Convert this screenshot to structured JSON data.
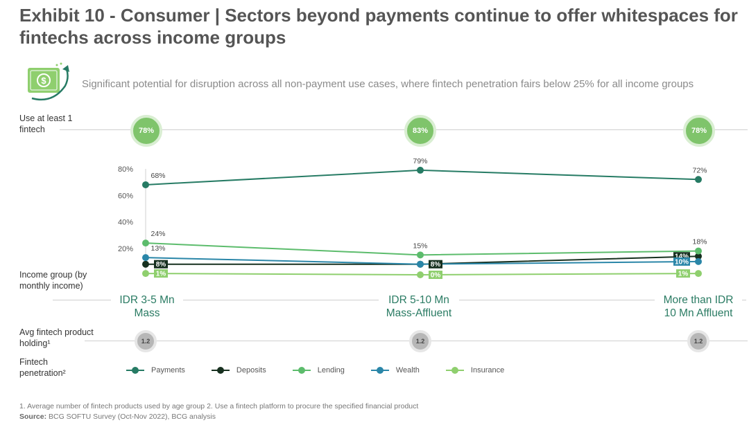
{
  "title": "Exhibit 10 - Consumer | Sectors beyond payments continue to offer whitespaces for fintechs across income groups",
  "subtitle": "Significant potential for disruption across all non-payment use cases, where fintech penetration fairs below 25% for all income groups",
  "icon": "money-cycle-icon",
  "rows": {
    "use_fintech": "Use at least 1 fintech",
    "income_group": "Income group (by monthly income)",
    "avg_holding": "Avg fintech product holding¹",
    "penetration": "Fintech penetration²"
  },
  "use_fintech_values": [
    "78%",
    "83%",
    "78%"
  ],
  "income_groups": [
    {
      "line1": "IDR 3-5 Mn",
      "line2": "Mass"
    },
    {
      "line1": "IDR 5-10 Mn",
      "line2": "Mass-Affluent"
    },
    {
      "line1": "More than IDR",
      "line2": "10 Mn Affluent"
    }
  ],
  "avg_holding_values": [
    "1.2",
    "1.2",
    "1.2"
  ],
  "colors": {
    "payments": "#267b64",
    "deposits": "#17301f",
    "lending": "#5cbc6c",
    "wealth": "#2a86a8",
    "insurance": "#8fcf6e"
  },
  "chart_data": {
    "type": "line",
    "categories": [
      "IDR 3-5 Mn Mass",
      "IDR 5-10 Mn Mass-Affluent",
      "More than IDR 10 Mn Affluent"
    ],
    "ylim": [
      0,
      80
    ],
    "yticks": [
      20,
      40,
      60,
      80
    ],
    "ytick_labels": [
      "20%",
      "40%",
      "60%",
      "80%"
    ],
    "series": [
      {
        "key": "payments",
        "name": "Payments",
        "values": [
          68,
          79,
          72
        ],
        "labels": [
          "68%",
          "79%",
          "72%"
        ],
        "label_style": [
          "above",
          "above",
          "above"
        ]
      },
      {
        "key": "deposits",
        "name": "Deposits",
        "values": [
          8,
          8,
          14
        ],
        "labels": [
          "8%",
          "8%",
          "14%"
        ],
        "label_style": [
          "box",
          "box",
          "box"
        ]
      },
      {
        "key": "lending",
        "name": "Lending",
        "values": [
          24,
          15,
          18
        ],
        "labels": [
          "24%",
          "15%",
          "18%"
        ],
        "label_style": [
          "above",
          "above",
          "above"
        ]
      },
      {
        "key": "wealth",
        "name": "Wealth",
        "values": [
          13,
          8,
          10
        ],
        "labels": [
          "13%",
          "",
          "10%"
        ],
        "label_style": [
          "above",
          "none",
          "box"
        ]
      },
      {
        "key": "insurance",
        "name": "Insurance",
        "values": [
          1,
          0,
          1
        ],
        "labels": [
          "1%",
          "0%",
          "1%"
        ],
        "label_style": [
          "box",
          "box",
          "box"
        ]
      }
    ]
  },
  "footnote": "1. Average number of fintech products used by age group   2. Use a fintech platform to procure the specified financial product",
  "source_label": "Source:",
  "source_text": "BCG SOFTU Survey (Oct-Nov 2022), BCG analysis"
}
